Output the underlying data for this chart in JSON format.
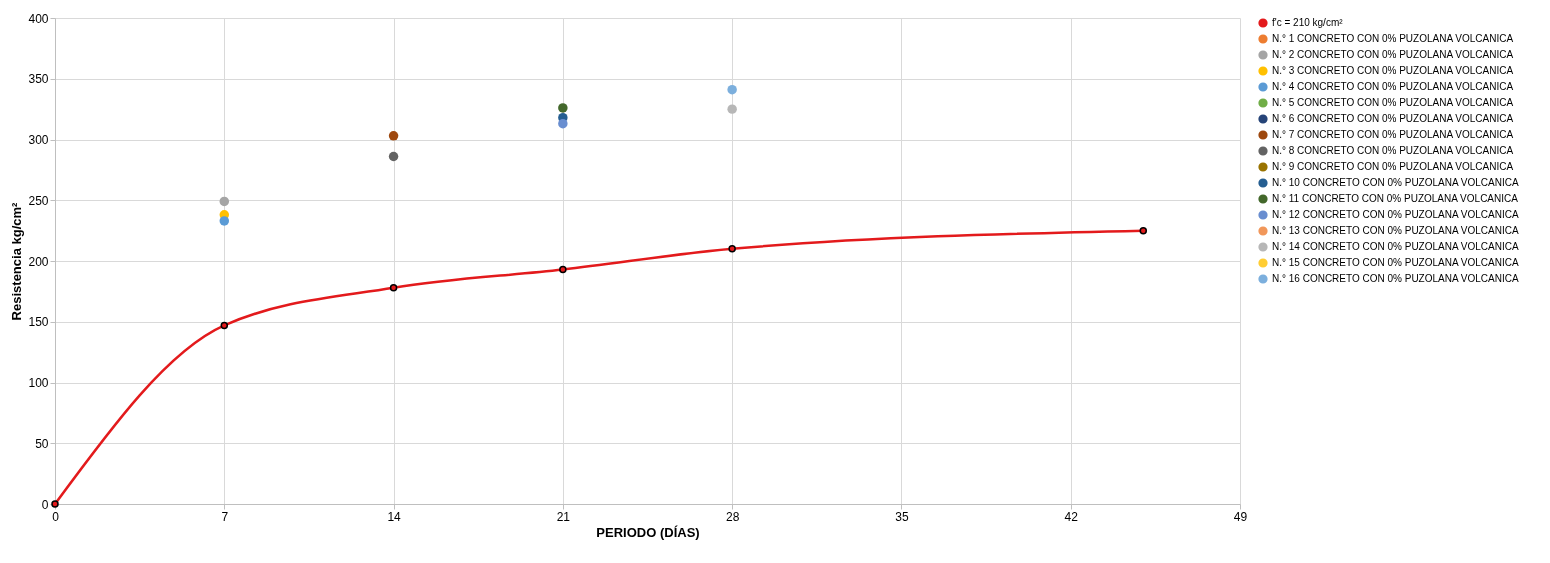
{
  "chart_data": {
    "type": "scatter",
    "xlabel": "PERIODO (DÍAS)",
    "ylabel": "Resistencia kg/cm²",
    "x": [
      7,
      14,
      21,
      28
    ],
    "xlim": [
      0,
      49
    ],
    "xticks": [
      0,
      7,
      14,
      21,
      28,
      35,
      42,
      49
    ],
    "ylim": [
      0,
      400
    ],
    "yticks": [
      0,
      50,
      100,
      150,
      200,
      250,
      300,
      350,
      400
    ],
    "grid": true,
    "legend": "right",
    "marker": "circle",
    "series": [
      {
        "name": "f'c = 210 kg/cm²",
        "type": "line",
        "color": "#e31a1c",
        "x": [
          0,
          7,
          14,
          21,
          28,
          45
        ],
        "values": [
          0,
          147,
          178,
          193,
          210,
          225
        ]
      },
      {
        "name": "N.° 1 CONCRETO CON 0% PUZOLANA VOLCANICA",
        "color": "#ed7d31",
        "values": [
          null,
          null,
          null,
          null
        ]
      },
      {
        "name": "N.° 2 CONCRETO CON 0% PUZOLANA VOLCANICA",
        "color": "#a5a5a5",
        "values": [
          249,
          null,
          null,
          null
        ]
      },
      {
        "name": "N.° 3 CONCRETO CON 0% PUZOLANA VOLCANICA",
        "color": "#ffc000",
        "values": [
          238,
          null,
          null,
          null
        ]
      },
      {
        "name": "N.° 4 CONCRETO CON 0% PUZOLANA VOLCANICA",
        "color": "#5b9bd5",
        "values": [
          233,
          null,
          null,
          null
        ]
      },
      {
        "name": "N.° 5 CONCRETO CON 0% PUZOLANA VOLCANICA",
        "color": "#70ad47",
        "values": [
          null,
          null,
          null,
          null
        ]
      },
      {
        "name": "N.° 6 CONCRETO CON 0% PUZOLANA VOLCANICA",
        "color": "#264478",
        "values": [
          null,
          null,
          null,
          null
        ]
      },
      {
        "name": "N.° 7 CONCRETO CON 0% PUZOLANA VOLCANICA",
        "color": "#9e480e",
        "values": [
          null,
          303,
          null,
          null
        ]
      },
      {
        "name": "N.° 8 CONCRETO CON 0% PUZOLANA VOLCANICA",
        "color": "#636363",
        "values": [
          null,
          286,
          null,
          null
        ]
      },
      {
        "name": "N.° 9 CONCRETO CON 0% PUZOLANA VOLCANICA",
        "color": "#997300",
        "values": [
          null,
          null,
          null,
          null
        ]
      },
      {
        "name": "N.° 10 CONCRETO CON 0% PUZOLANA VOLCANICA",
        "color": "#255e91",
        "values": [
          null,
          null,
          318,
          null
        ]
      },
      {
        "name": "N.° 11 CONCRETO CON 0% PUZOLANA VOLCANICA",
        "color": "#43682b",
        "values": [
          null,
          null,
          326,
          null
        ]
      },
      {
        "name": "N.° 12 CONCRETO CON 0% PUZOLANA VOLCANICA",
        "color": "#698ed0",
        "values": [
          null,
          null,
          313,
          null
        ]
      },
      {
        "name": "N.° 13 CONCRETO CON 0% PUZOLANA VOLCANICA",
        "color": "#f1975a",
        "values": [
          null,
          null,
          null,
          null
        ]
      },
      {
        "name": "N.° 14 CONCRETO CON 0% PUZOLANA VOLCANICA",
        "color": "#b7b7b7",
        "values": [
          null,
          null,
          null,
          325
        ]
      },
      {
        "name": "N.° 15 CONCRETO CON 0% PUZOLANA VOLCANICA",
        "color": "#ffcd33",
        "values": [
          null,
          null,
          null,
          null
        ]
      },
      {
        "name": "N.° 16 CONCRETO CON 0% PUZOLANA VOLCANICA",
        "color": "#7cafdd",
        "values": [
          null,
          null,
          null,
          341
        ]
      }
    ]
  }
}
